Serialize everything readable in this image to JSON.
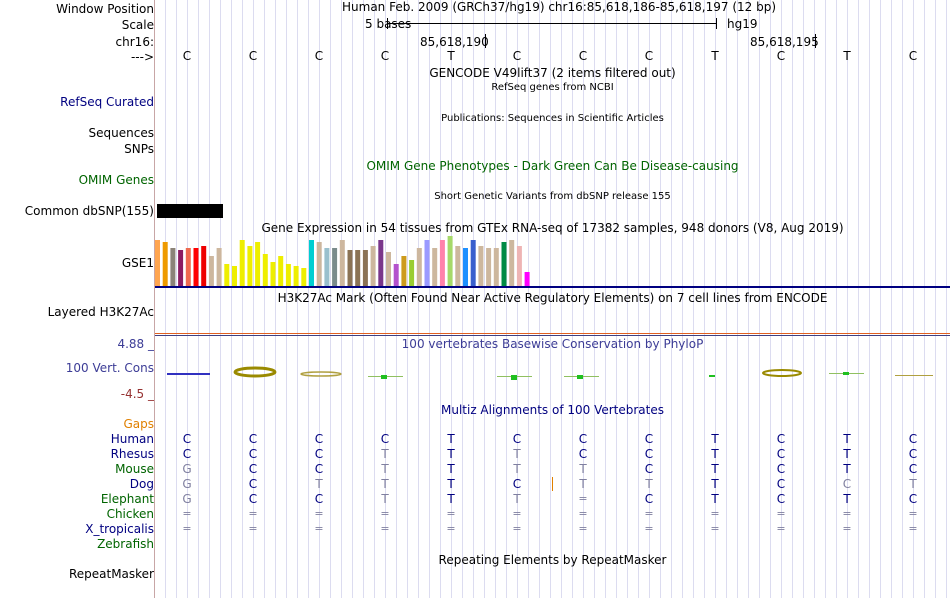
{
  "labels": {
    "window_position": "Window Position",
    "scale": "Scale",
    "chrom": "chr16:",
    "strand": "--->",
    "refseq": "RefSeq Curated",
    "sequences": "Sequences",
    "snps": "SNPs",
    "omim": "OMIM Genes",
    "dbsnp": "Common dbSNP(155)",
    "gse1": "GSE1",
    "h3k27": "Layered H3K27Ac",
    "y_max": "4.88 _",
    "cons": "100 Vert. Cons",
    "y_min": "-4.5 _",
    "gaps": "Gaps",
    "repeatmasker": "RepeatMasker"
  },
  "species": [
    "Human",
    "Rhesus",
    "Mouse",
    "Dog",
    "Elephant",
    "Chicken",
    "X_tropicalis",
    "Zebrafish"
  ],
  "header": {
    "position": "Human Feb. 2009 (GRCh37/hg19)   chr16:85,618,186-85,618,197 (12 bp)",
    "scale": "5 bases",
    "assembly": "hg19",
    "coord1": "85,618,190",
    "coord2": "85,618,195"
  },
  "bases": [
    "C",
    "C",
    "C",
    "C",
    "T",
    "C",
    "C",
    "C",
    "T",
    "C",
    "T",
    "C"
  ],
  "tracks": {
    "gencode": "GENCODE V49lift37 (2 items filtered out)",
    "refseq": "RefSeq genes from NCBI",
    "publications": "Publications: Sequences in Scientific Articles",
    "omim": "OMIM Gene Phenotypes - Dark Green Can Be Disease-causing",
    "short_variants": "Short Genetic Variants from dbSNP release 155",
    "gtex": "Gene Expression in 54 tissues from GTEx RNA-seq of 17382 samples, 948 donors (V8, Aug 2019)",
    "h3k27": "H3K27Ac Mark (Often Found Near Active Regulatory Elements) on 7 cell lines from ENCODE",
    "phylop": "100 vertebrates Basewise Conservation by PhyloP",
    "multiz": "Multiz Alignments of 100 Vertebrates",
    "repeats": "Repeating Elements by RepeatMasker"
  },
  "alignments": {
    "Human": [
      "C",
      "C",
      "C",
      "C",
      "T",
      "C",
      "C",
      "C",
      "T",
      "C",
      "T",
      "C"
    ],
    "Rhesus": [
      "C",
      "C",
      "C",
      "T",
      "T",
      "T",
      "C",
      "C",
      "T",
      "C",
      "T",
      "C"
    ],
    "Mouse": [
      "G",
      "C",
      "C",
      "T",
      "T",
      "T",
      "T",
      "C",
      "T",
      "C",
      "T",
      "C"
    ],
    "Dog": [
      "G",
      "C",
      "T",
      "T",
      "T",
      "C",
      "T",
      "T",
      "T",
      "C",
      "C",
      "T"
    ],
    "Elephant": [
      "G",
      "C",
      "C",
      "T",
      "T",
      "T",
      "=",
      "C",
      "T",
      "C",
      "T",
      "C"
    ],
    "Chicken": [
      "=",
      "=",
      "=",
      "=",
      "=",
      "=",
      "=",
      "=",
      "=",
      "=",
      "=",
      "="
    ],
    "X_tropicalis": [
      "=",
      "=",
      "=",
      "=",
      "=",
      "=",
      "=",
      "=",
      "=",
      "=",
      "=",
      "="
    ],
    "Zebrafish": [
      "",
      "",
      "",
      "",
      "",
      "",
      "",
      "",
      "",
      "",
      "",
      ""
    ]
  },
  "colors": {
    "label_blue": "#000080",
    "label_green": "#006400",
    "gaps_orange": "#e08000",
    "cons_blue": "#3c3c96",
    "cons_red": "#963232",
    "faded": "#8080a0"
  }
}
